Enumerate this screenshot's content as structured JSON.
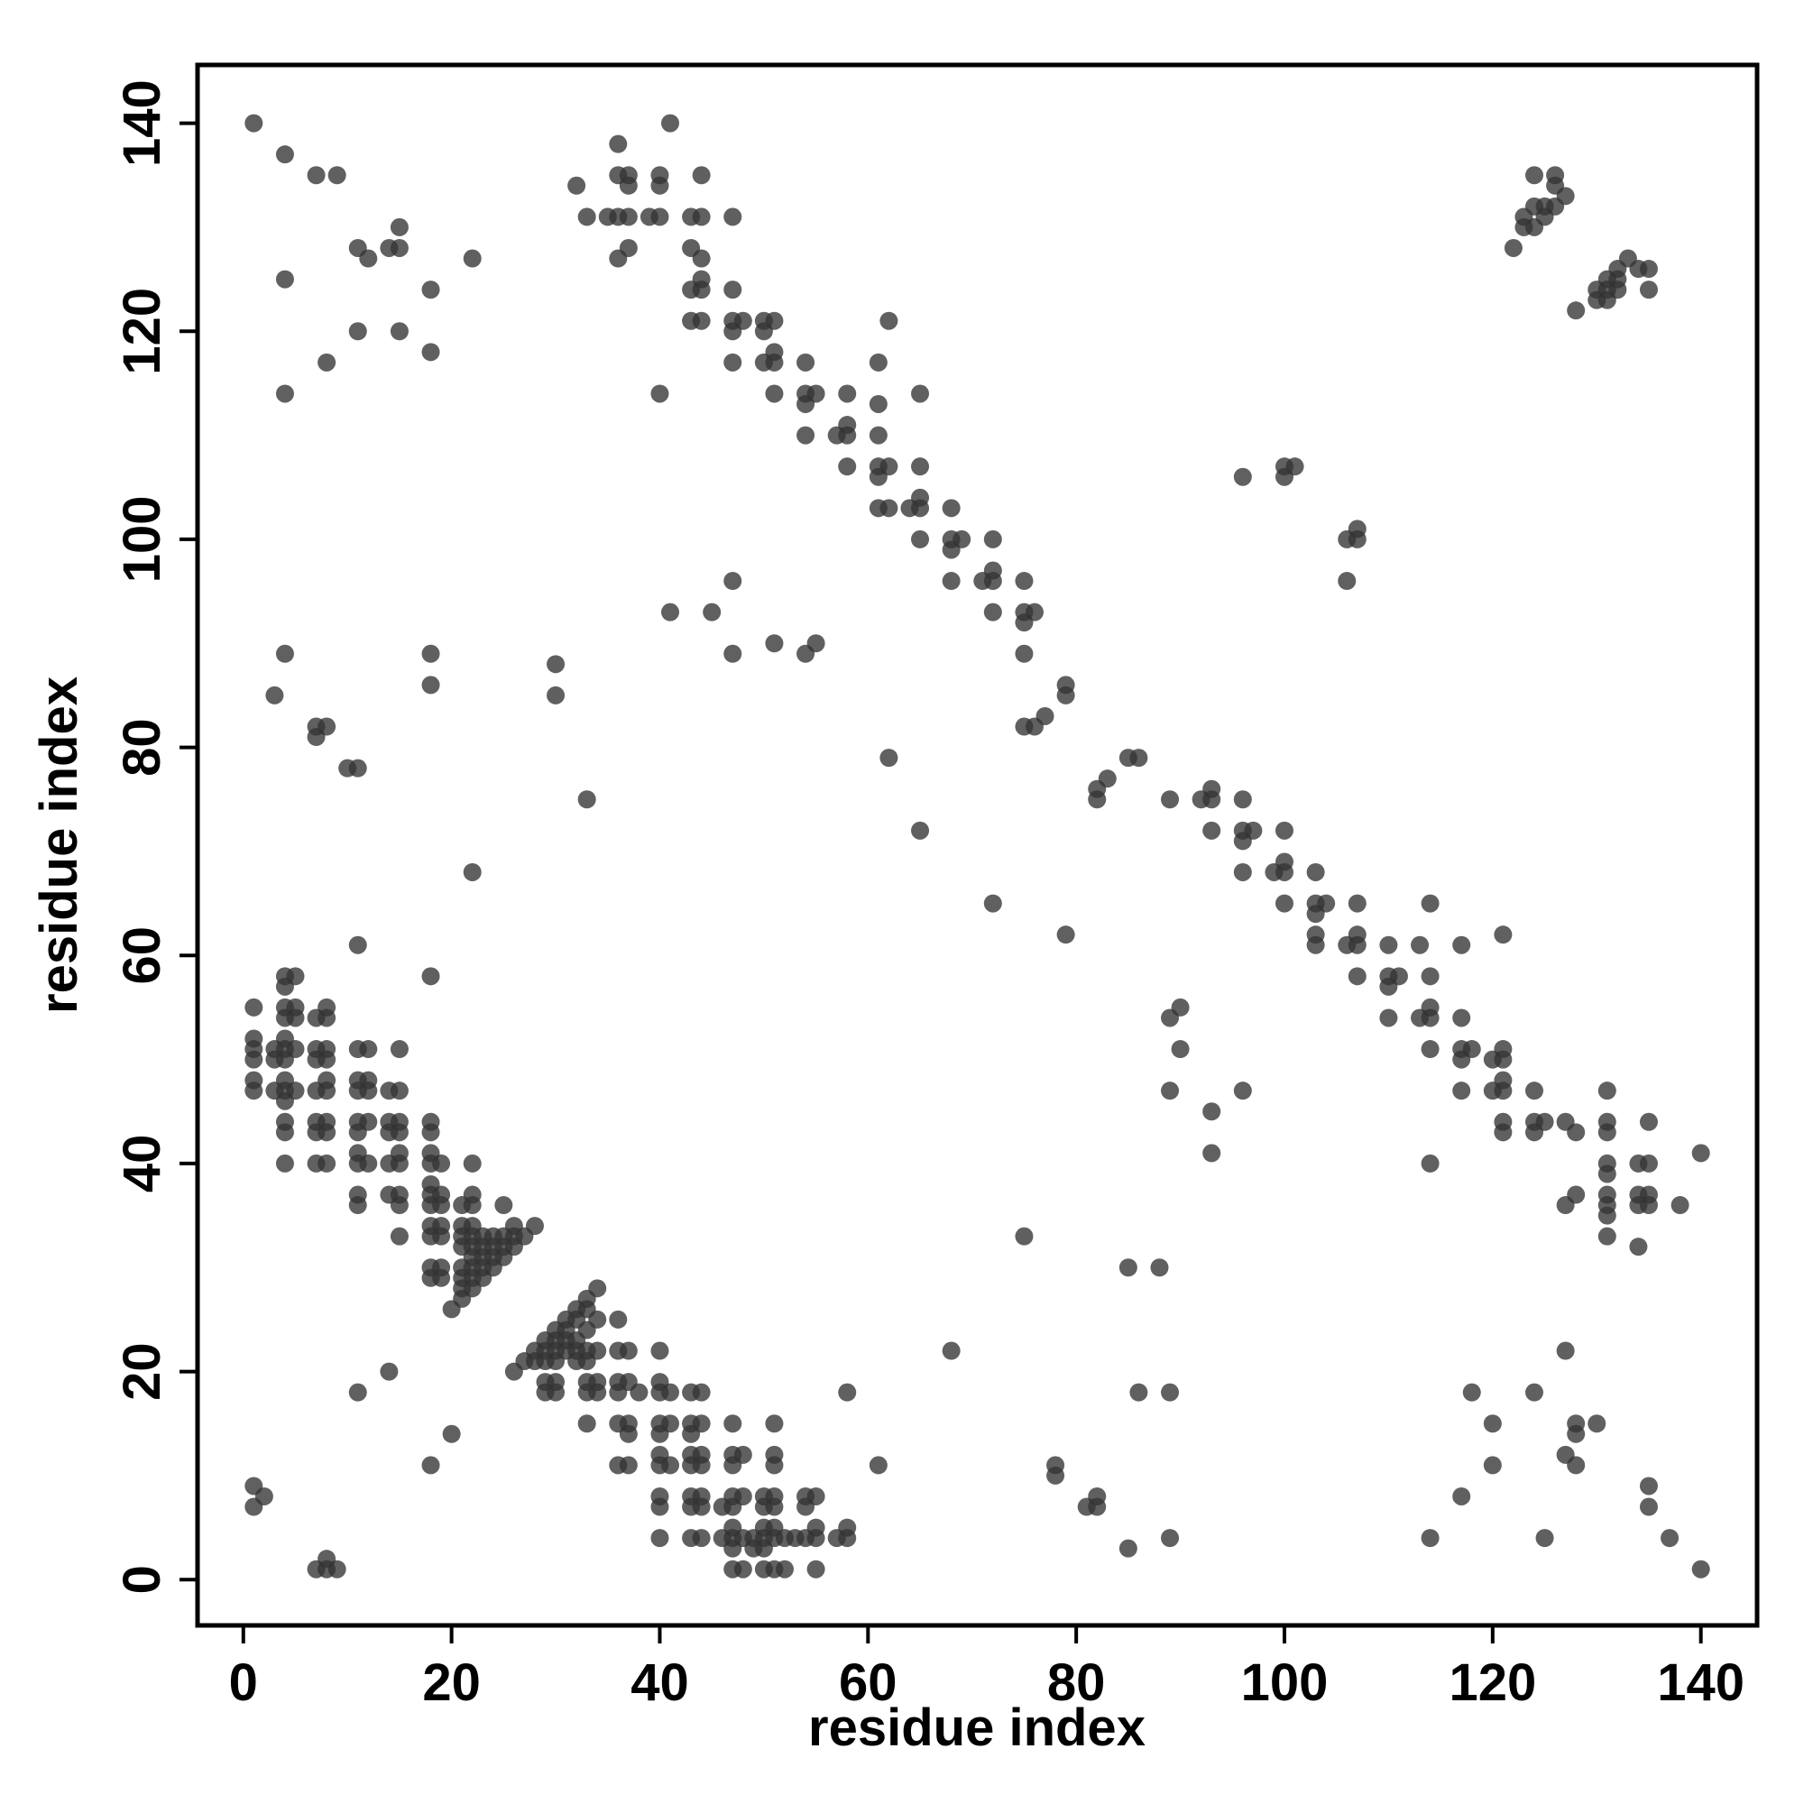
{
  "chart_data": {
    "type": "scatter",
    "x_label": "residue index",
    "y_label": "residue index",
    "xlim": [
      -4.4,
      145.4
    ],
    "ylim": [
      -4.4,
      145.6
    ],
    "xticks": [
      0,
      20,
      40,
      60,
      80,
      100,
      120,
      140
    ],
    "yticks": [
      0,
      20,
      40,
      60,
      80,
      100,
      120,
      140
    ],
    "color": "#333333",
    "alpha": 0.78,
    "grid": false,
    "x": [
      1,
      4,
      7,
      9,
      11,
      12,
      14,
      15,
      15,
      22,
      4,
      18,
      11,
      15,
      8,
      18,
      4,
      41,
      32,
      36,
      36,
      37,
      37,
      40,
      40,
      44,
      33,
      35,
      36,
      37,
      39,
      40,
      43,
      44,
      47,
      36,
      37,
      43,
      44,
      43,
      44,
      44,
      47,
      43,
      44,
      47,
      48,
      50,
      51,
      47,
      50,
      47,
      50,
      51,
      51,
      54,
      51,
      54,
      55,
      54,
      58,
      40,
      54,
      57,
      58,
      58,
      61,
      61,
      61,
      62,
      65,
      58,
      61,
      62,
      61,
      65,
      61,
      62,
      64,
      65,
      65,
      68,
      65,
      68,
      69,
      68,
      72,
      68,
      71,
      72,
      72,
      75,
      72,
      75,
      76,
      75,
      75,
      47,
      41,
      45,
      47,
      51,
      54,
      55,
      79,
      79,
      75,
      76,
      77,
      3,
      4,
      18,
      18,
      7,
      8,
      7,
      10,
      11,
      30,
      30,
      33,
      62,
      65,
      82,
      82,
      83,
      85,
      86,
      89,
      92,
      93,
      93,
      93,
      96,
      96,
      97,
      96,
      100,
      96,
      99,
      100,
      100,
      103,
      100,
      103,
      104,
      103,
      107,
      103,
      103,
      106,
      107,
      107,
      110,
      113,
      114,
      107,
      110,
      111,
      110,
      114,
      110,
      113,
      114,
      114,
      117,
      114,
      117,
      118,
      117,
      121,
      117,
      120,
      121,
      121,
      120,
      121,
      124,
      121,
      124,
      125,
      121,
      124,
      127,
      128,
      131,
      131,
      131,
      135,
      117,
      121,
      114,
      131,
      131,
      134,
      135,
      131,
      131,
      131,
      134,
      134,
      135,
      135,
      138,
      127,
      128,
      131,
      134,
      140,
      72,
      79,
      96,
      100,
      101,
      100,
      106,
      107,
      107,
      106,
      89,
      90,
      90,
      89,
      93,
      93,
      96,
      22,
      11,
      18,
      122,
      123,
      123,
      124,
      124,
      124,
      125,
      126,
      126,
      126,
      127,
      125,
      128,
      130,
      130,
      131,
      131,
      132,
      132,
      133,
      134,
      135,
      135,
      131,
      132,
      1,
      1,
      1,
      1,
      1,
      1,
      3,
      3,
      3,
      4,
      4,
      4,
      4,
      4,
      4,
      4,
      4,
      4,
      4,
      4,
      4,
      4,
      5,
      5,
      5,
      5,
      5,
      7,
      7,
      7,
      7,
      7,
      7,
      7,
      8,
      8,
      8,
      8,
      8,
      8,
      8,
      8,
      8,
      11,
      11,
      11,
      11,
      11,
      11,
      11,
      11,
      11,
      12,
      12,
      12,
      12,
      12,
      14,
      14,
      14,
      14,
      14,
      15,
      15,
      15,
      15,
      15,
      15,
      15,
      15,
      15,
      18,
      18,
      18,
      18,
      18,
      18,
      18,
      18,
      18,
      18,
      18,
      19,
      19,
      19,
      19,
      19,
      19,
      19,
      20,
      21,
      21,
      21,
      21,
      21,
      21,
      21,
      21,
      22,
      22,
      22,
      22,
      22,
      22,
      22,
      22,
      22,
      22,
      23,
      23,
      23,
      23,
      23,
      24,
      24,
      24,
      24,
      25,
      25,
      25,
      25,
      26,
      26,
      26,
      27,
      28,
      26,
      27,
      28,
      28,
      29,
      29,
      29,
      29,
      29,
      30,
      30,
      30,
      30,
      30,
      30,
      31,
      31,
      31,
      31,
      32,
      32,
      32,
      32,
      32,
      33,
      33,
      33,
      33,
      33,
      33,
      33,
      33,
      34,
      34,
      34,
      34,
      34,
      36,
      36,
      36,
      36,
      36,
      36,
      37,
      37,
      37,
      37,
      37,
      38,
      40,
      40,
      40,
      40,
      40,
      40,
      40,
      40,
      40,
      40,
      41,
      41,
      41,
      43,
      43,
      43,
      43,
      43,
      43,
      43,
      43,
      44,
      44,
      44,
      44,
      44,
      44,
      44,
      46,
      46,
      47,
      47,
      47,
      47,
      47,
      47,
      47,
      47,
      47,
      48,
      48,
      48,
      48,
      49,
      49,
      50,
      50,
      50,
      50,
      50,
      50,
      51,
      51,
      51,
      51,
      51,
      51,
      51,
      51,
      52,
      52,
      53,
      54,
      54,
      54,
      55,
      55,
      55,
      55,
      57,
      58,
      58,
      58,
      61,
      1,
      1,
      2,
      7,
      8,
      8,
      9,
      11,
      14,
      18,
      20,
      68,
      78,
      78,
      81,
      82,
      82,
      85,
      86,
      89,
      89,
      85,
      88,
      75,
      114,
      117,
      118,
      120,
      120,
      124,
      125,
      127,
      127,
      128,
      128,
      128,
      130,
      135,
      135,
      137,
      140
    ],
    "values": [
      140,
      137,
      135,
      135,
      128,
      127,
      128,
      128,
      130,
      127,
      125,
      124,
      120,
      120,
      117,
      118,
      114,
      140,
      134,
      138,
      135,
      135,
      134,
      135,
      134,
      135,
      131,
      131,
      131,
      131,
      131,
      131,
      131,
      131,
      131,
      127,
      128,
      128,
      127,
      124,
      125,
      124,
      124,
      121,
      121,
      121,
      121,
      121,
      121,
      120,
      120,
      117,
      117,
      117,
      118,
      117,
      114,
      114,
      114,
      113,
      114,
      114,
      110,
      110,
      110,
      111,
      110,
      113,
      117,
      121,
      114,
      107,
      107,
      107,
      106,
      107,
      103,
      103,
      103,
      103,
      104,
      103,
      100,
      100,
      100,
      99,
      100,
      96,
      96,
      96,
      97,
      96,
      93,
      93,
      93,
      92,
      89,
      96,
      93,
      93,
      89,
      90,
      89,
      90,
      86,
      85,
      82,
      82,
      83,
      85,
      89,
      89,
      86,
      82,
      82,
      81,
      78,
      78,
      88,
      85,
      75,
      79,
      72,
      76,
      75,
      77,
      79,
      79,
      75,
      75,
      76,
      75,
      72,
      75,
      72,
      72,
      71,
      72,
      68,
      68,
      69,
      68,
      68,
      65,
      65,
      65,
      64,
      65,
      62,
      61,
      61,
      61,
      62,
      61,
      61,
      65,
      58,
      58,
      58,
      57,
      58,
      54,
      54,
      54,
      55,
      54,
      51,
      51,
      51,
      50,
      51,
      47,
      47,
      47,
      48,
      50,
      50,
      47,
      44,
      44,
      44,
      43,
      43,
      44,
      43,
      47,
      44,
      43,
      44,
      61,
      62,
      40,
      40,
      39,
      40,
      40,
      37,
      36,
      35,
      37,
      36,
      37,
      36,
      36,
      36,
      37,
      33,
      32,
      41,
      65,
      62,
      106,
      107,
      107,
      106,
      100,
      100,
      101,
      96,
      54,
      55,
      51,
      47,
      45,
      41,
      47,
      68,
      61,
      58,
      128,
      131,
      130,
      132,
      135,
      130,
      131,
      132,
      135,
      134,
      133,
      132,
      122,
      123,
      124,
      123,
      125,
      124,
      126,
      127,
      126,
      126,
      124,
      124,
      125,
      55,
      52,
      51,
      50,
      48,
      47,
      51,
      50,
      47,
      58,
      57,
      55,
      54,
      52,
      51,
      50,
      48,
      47,
      46,
      44,
      43,
      40,
      58,
      55,
      54,
      51,
      47,
      54,
      51,
      50,
      47,
      44,
      43,
      40,
      55,
      54,
      51,
      50,
      48,
      47,
      44,
      43,
      40,
      51,
      48,
      47,
      44,
      43,
      41,
      40,
      37,
      36,
      51,
      48,
      47,
      44,
      40,
      47,
      44,
      43,
      40,
      37,
      51,
      47,
      44,
      43,
      41,
      40,
      37,
      36,
      33,
      44,
      43,
      41,
      40,
      38,
      37,
      36,
      34,
      33,
      30,
      29,
      40,
      37,
      36,
      34,
      33,
      30,
      29,
      26,
      36,
      34,
      33,
      32,
      30,
      29,
      28,
      27,
      40,
      37,
      36,
      34,
      33,
      32,
      31,
      30,
      29,
      28,
      33,
      32,
      31,
      30,
      29,
      33,
      32,
      31,
      30,
      36,
      33,
      32,
      31,
      34,
      33,
      32,
      33,
      34,
      20,
      21,
      22,
      21,
      23,
      22,
      21,
      19,
      18,
      24,
      23,
      22,
      21,
      19,
      18,
      25,
      24,
      23,
      22,
      26,
      25,
      23,
      22,
      21,
      27,
      26,
      24,
      22,
      21,
      19,
      18,
      15,
      28,
      25,
      22,
      19,
      18,
      25,
      22,
      19,
      18,
      15,
      11,
      22,
      19,
      15,
      14,
      11,
      18,
      22,
      19,
      18,
      15,
      14,
      12,
      11,
      8,
      7,
      4,
      18,
      15,
      11,
      18,
      15,
      14,
      12,
      11,
      8,
      7,
      4,
      18,
      15,
      12,
      11,
      8,
      7,
      4,
      7,
      4,
      15,
      12,
      11,
      8,
      7,
      5,
      4,
      3,
      1,
      12,
      8,
      4,
      1,
      4,
      3,
      8,
      7,
      5,
      4,
      3,
      1,
      15,
      12,
      11,
      8,
      7,
      5,
      4,
      1,
      4,
      1,
      4,
      8,
      7,
      4,
      8,
      5,
      4,
      1,
      4,
      18,
      5,
      4,
      11,
      9,
      7,
      8,
      1,
      2,
      1,
      1,
      18,
      20,
      11,
      14,
      22,
      11,
      10,
      7,
      8,
      7,
      3,
      18,
      18,
      4,
      30,
      30,
      33,
      4,
      8,
      18,
      15,
      11,
      18,
      4,
      22,
      12,
      15,
      14,
      11,
      15,
      9,
      7,
      4,
      1
    ]
  }
}
